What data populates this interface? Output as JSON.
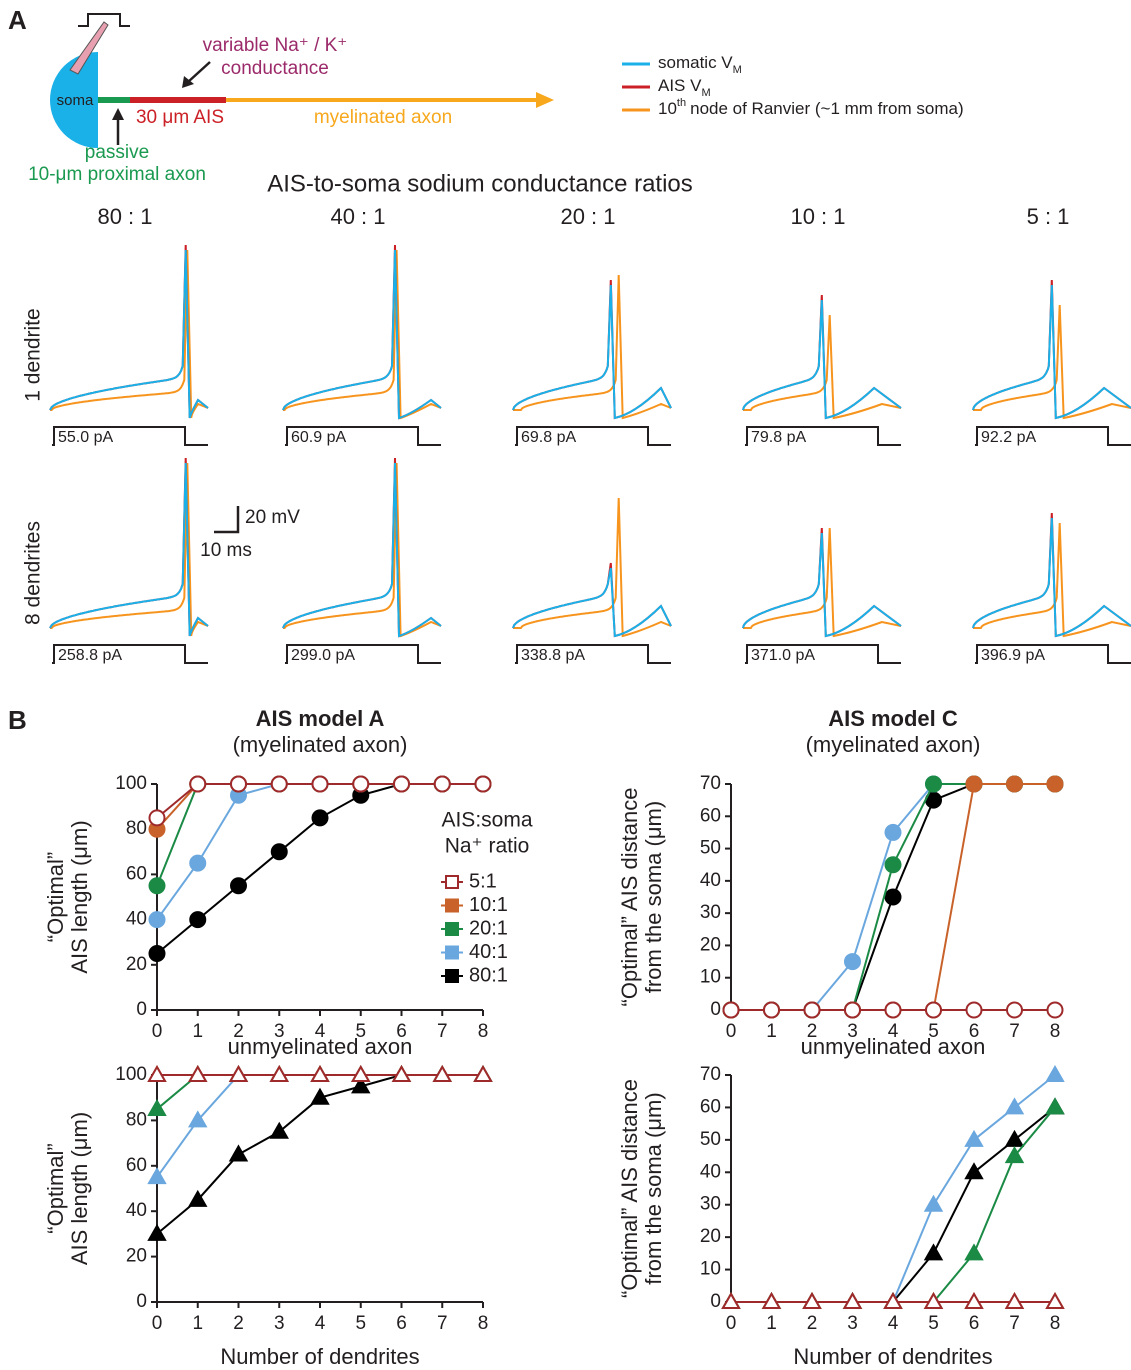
{
  "panel_labels": [
    "A",
    "B"
  ],
  "schematic": {
    "soma": "soma",
    "conductance_label": [
      "variable Na⁺ / K⁺",
      "conductance"
    ],
    "ais": "30 μm AIS",
    "myelin": "myelinated axon",
    "proximal": [
      "passive",
      "10-μm proximal axon"
    ]
  },
  "trace_legend": [
    {
      "name": "somatic V",
      "sub": "M",
      "color": "#1ab0e8"
    },
    {
      "name": "AIS V",
      "sub": "M",
      "color": "#cc2027"
    },
    {
      "prefix": "10",
      "sup": "th",
      "name": "node of Ranvier (~1 mm from soma)",
      "color": "#f7941d"
    }
  ],
  "traces": {
    "title": "AIS-to-soma sodium conductance ratios",
    "ratios": [
      "80 : 1",
      "40 : 1",
      "20 : 1",
      "10 : 1",
      "5 : 1"
    ],
    "rows": [
      {
        "label": "1 dendrite",
        "currents": [
          "55.0 pA",
          "60.9 pA",
          "69.8 pA",
          "79.8 pA",
          "92.2 pA"
        ]
      },
      {
        "label": "8 dendrites",
        "currents": [
          "258.8 pA",
          "299.0 pA",
          "338.8 pA",
          "371.0 pA",
          "396.9 pA"
        ]
      }
    ],
    "scale": {
      "v": "20 mV",
      "t": "10 ms"
    }
  },
  "chart_data": [
    {
      "type": "line",
      "title": "AIS model A",
      "subtitle": "(myelinated axon)",
      "ylabel": [
        "“Optimal”",
        "AIS length (μm)"
      ],
      "marker": "circle",
      "x": [
        0,
        1,
        2,
        3,
        4,
        5,
        6,
        7,
        8
      ],
      "xlim": [
        0,
        8
      ],
      "xticks": [
        0,
        1,
        2,
        3,
        4,
        5,
        6,
        7,
        8
      ],
      "ylim": [
        0,
        100
      ],
      "yticks": [
        0,
        20,
        40,
        60,
        80,
        100
      ],
      "legend": true,
      "legend_title": [
        "AIS:soma",
        "Na⁺ ratio"
      ],
      "series": [
        {
          "name": "5:1",
          "color": "#9e2a2b",
          "filled": false,
          "values": [
            85,
            100,
            100,
            100,
            100,
            100,
            100,
            100,
            100
          ]
        },
        {
          "name": "10:1",
          "color": "#c8622a",
          "filled": true,
          "values": [
            80,
            100,
            100,
            100,
            100,
            100,
            100,
            100,
            100
          ]
        },
        {
          "name": "20:1",
          "color": "#1a8a45",
          "filled": true,
          "values": [
            55,
            100,
            100,
            100,
            100,
            100,
            100,
            100,
            100
          ]
        },
        {
          "name": "40:1",
          "color": "#6aa7de",
          "filled": true,
          "values": [
            40,
            65,
            95,
            100,
            100,
            100,
            100,
            100,
            100
          ]
        },
        {
          "name": "80:1",
          "color": "#000000",
          "filled": true,
          "values": [
            25,
            40,
            55,
            70,
            85,
            95,
            100,
            100,
            100
          ]
        }
      ]
    },
    {
      "type": "line",
      "title": "unmyelinated axon",
      "ylabel": [
        "“Optimal”",
        "AIS length (μm)"
      ],
      "xlabel": "Number of dendrites",
      "marker": "triangle",
      "x": [
        0,
        1,
        2,
        3,
        4,
        5,
        6,
        7,
        8
      ],
      "xlim": [
        0,
        8
      ],
      "xticks": [
        0,
        1,
        2,
        3,
        4,
        5,
        6,
        7,
        8
      ],
      "ylim": [
        0,
        100
      ],
      "yticks": [
        0,
        20,
        40,
        60,
        80,
        100
      ],
      "legend": false,
      "series": [
        {
          "name": "5:1",
          "color": "#9e2a2b",
          "filled": false,
          "values": [
            100,
            100,
            100,
            100,
            100,
            100,
            100,
            100,
            100
          ]
        },
        {
          "name": "10:1",
          "color": "#c8622a",
          "filled": true,
          "values": [
            100,
            100,
            100,
            100,
            100,
            100,
            100,
            100,
            100
          ]
        },
        {
          "name": "20:1",
          "color": "#1a8a45",
          "filled": true,
          "values": [
            85,
            100,
            100,
            100,
            100,
            100,
            100,
            100,
            100
          ]
        },
        {
          "name": "40:1",
          "color": "#6aa7de",
          "filled": true,
          "values": [
            55,
            80,
            100,
            100,
            100,
            100,
            100,
            100,
            100
          ]
        },
        {
          "name": "80:1",
          "color": "#000000",
          "filled": true,
          "values": [
            30,
            45,
            65,
            75,
            90,
            95,
            100,
            100,
            100
          ]
        }
      ]
    },
    {
      "type": "line",
      "title": "AIS model C",
      "subtitle": "(myelinated axon)",
      "ylabel": [
        "“Optimal” AIS distance",
        "from the soma (μm)"
      ],
      "marker": "circle",
      "x": [
        0,
        1,
        2,
        3,
        4,
        5,
        6,
        7,
        8
      ],
      "xlim": [
        0,
        8
      ],
      "xticks": [
        0,
        1,
        2,
        3,
        4,
        5,
        6,
        7,
        8
      ],
      "ylim": [
        0,
        70
      ],
      "yticks": [
        0,
        10,
        20,
        30,
        40,
        50,
        60,
        70
      ],
      "legend": false,
      "series": [
        {
          "name": "5:1",
          "color": "#9e2a2b",
          "filled": false,
          "values": [
            0,
            0,
            0,
            0,
            0,
            0,
            0,
            0,
            0
          ]
        },
        {
          "name": "10:1",
          "color": "#c8622a",
          "filled": true,
          "values": [
            0,
            0,
            0,
            0,
            0,
            0,
            70,
            70,
            70
          ]
        },
        {
          "name": "20:1",
          "color": "#1a8a45",
          "filled": true,
          "values": [
            0,
            0,
            0,
            0,
            45,
            70,
            70,
            70,
            70
          ]
        },
        {
          "name": "40:1",
          "color": "#6aa7de",
          "filled": true,
          "values": [
            0,
            0,
            0,
            15,
            55,
            70,
            70,
            70,
            70
          ]
        },
        {
          "name": "80:1",
          "color": "#000000",
          "filled": true,
          "values": [
            0,
            0,
            0,
            0,
            35,
            65,
            70,
            70,
            70
          ]
        }
      ]
    },
    {
      "type": "line",
      "title": "unmyelinated axon",
      "ylabel": [
        "“Optimal” AIS distance",
        "from the soma (μm)"
      ],
      "xlabel": "Number of dendrites",
      "marker": "triangle",
      "x": [
        0,
        1,
        2,
        3,
        4,
        5,
        6,
        7,
        8
      ],
      "xlim": [
        0,
        8
      ],
      "xticks": [
        0,
        1,
        2,
        3,
        4,
        5,
        6,
        7,
        8
      ],
      "ylim": [
        0,
        70
      ],
      "yticks": [
        0,
        10,
        20,
        30,
        40,
        50,
        60,
        70
      ],
      "legend": false,
      "series": [
        {
          "name": "5:1",
          "color": "#9e2a2b",
          "filled": false,
          "values": [
            0,
            0,
            0,
            0,
            0,
            0,
            0,
            0,
            0
          ]
        },
        {
          "name": "10:1",
          "color": "#c8622a",
          "filled": true,
          "values": [
            0,
            0,
            0,
            0,
            0,
            0,
            0,
            0,
            0
          ]
        },
        {
          "name": "20:1",
          "color": "#1a8a45",
          "filled": true,
          "values": [
            0,
            0,
            0,
            0,
            0,
            0,
            15,
            45,
            60
          ]
        },
        {
          "name": "40:1",
          "color": "#6aa7de",
          "filled": true,
          "values": [
            0,
            0,
            0,
            0,
            0,
            30,
            50,
            60,
            70
          ]
        },
        {
          "name": "80:1",
          "color": "#000000",
          "filled": true,
          "values": [
            0,
            0,
            0,
            0,
            0,
            15,
            40,
            50,
            60
          ]
        }
      ]
    }
  ]
}
